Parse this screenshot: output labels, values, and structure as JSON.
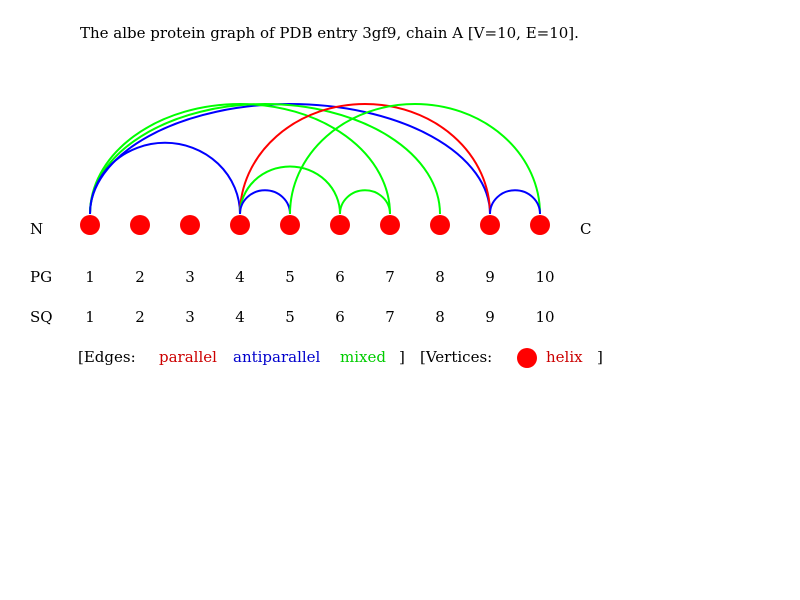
{
  "title": "The albe protein graph of PDB entry 3gf9, chain A [V=10, E=10].",
  "terminus_n": "N",
  "terminus_c": "C",
  "row_labels": {
    "pg": "PG",
    "sq": "SQ"
  },
  "vertices": [
    {
      "pg": "1",
      "sq": "1"
    },
    {
      "pg": "2",
      "sq": "2"
    },
    {
      "pg": "3",
      "sq": "3"
    },
    {
      "pg": "4",
      "sq": "4"
    },
    {
      "pg": "5",
      "sq": "5"
    },
    {
      "pg": "6",
      "sq": "6"
    },
    {
      "pg": "7",
      "sq": "7"
    },
    {
      "pg": "8",
      "sq": "8"
    },
    {
      "pg": "9",
      "sq": "9"
    },
    {
      "pg": "10",
      "sq": "10"
    }
  ],
  "vertex_color": "#ff0000",
  "edge_colors": {
    "parallel": "#ff0000",
    "antiparallel": "#0000ff",
    "mixed": "#00ff00"
  },
  "edges": [
    {
      "from": 1,
      "to": 9,
      "type": "antiparallel"
    },
    {
      "from": 1,
      "to": 8,
      "type": "mixed"
    },
    {
      "from": 1,
      "to": 7,
      "type": "mixed"
    },
    {
      "from": 1,
      "to": 4,
      "type": "antiparallel"
    },
    {
      "from": 4,
      "to": 9,
      "type": "parallel"
    },
    {
      "from": 4,
      "to": 6,
      "type": "mixed"
    },
    {
      "from": 4,
      "to": 5,
      "type": "antiparallel"
    },
    {
      "from": 5,
      "to": 10,
      "type": "mixed"
    },
    {
      "from": 6,
      "to": 7,
      "type": "mixed"
    },
    {
      "from": 9,
      "to": 10,
      "type": "antiparallel"
    }
  ],
  "legend": {
    "edges_open": "[Edges:",
    "parallel": "parallel",
    "antiparallel": "antiparallel",
    "mixed": "mixed",
    "edges_close": "]",
    "vertices_open": "[Vertices:",
    "helix": "helix",
    "vertices_close": "]",
    "helix_color": "#cc0000"
  }
}
